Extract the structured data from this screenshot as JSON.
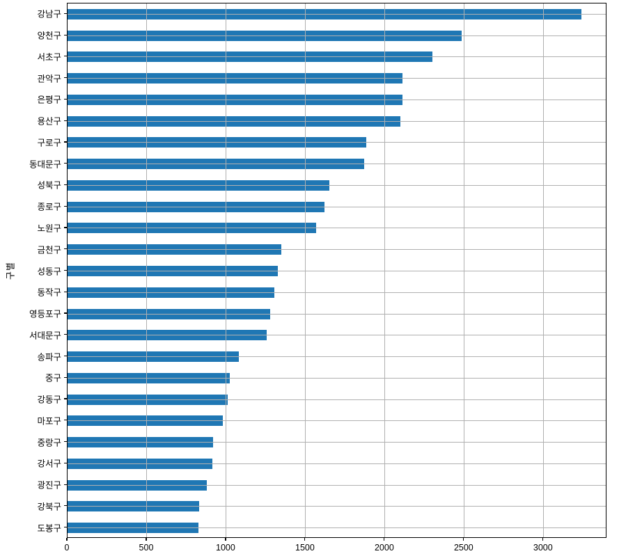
{
  "chart_data": {
    "type": "bar",
    "orientation": "horizontal",
    "title": "",
    "xlabel": "",
    "ylabel": "구별",
    "categories": [
      "강남구",
      "양천구",
      "서초구",
      "관악구",
      "은평구",
      "용산구",
      "구로구",
      "동대문구",
      "성북구",
      "종로구",
      "노원구",
      "금천구",
      "성동구",
      "동작구",
      "영등포구",
      "서대문구",
      "송파구",
      "중구",
      "강동구",
      "마포구",
      "중랑구",
      "강서구",
      "광진구",
      "강북구",
      "도봉구"
    ],
    "values": [
      3238,
      2482,
      2297,
      2109,
      2108,
      2096,
      1884,
      1870,
      1651,
      1619,
      1566,
      1348,
      1327,
      1302,
      1277,
      1254,
      1081,
      1023,
      1010,
      980,
      916,
      911,
      878,
      831,
      825
    ],
    "xticks": [
      0,
      500,
      1000,
      1500,
      2000,
      2500,
      3000
    ],
    "xtick_labels": [
      "0",
      "500",
      "1000",
      "1500",
      "2000",
      "2500",
      "3000"
    ],
    "xlim": [
      0,
      3400
    ],
    "grid": true,
    "grid_on_top": true,
    "legend": "none",
    "bar_color": "#1f77b4",
    "grid_color": "#b0b0b0",
    "axis_color": "#000000",
    "background_color": "#ffffff"
  }
}
